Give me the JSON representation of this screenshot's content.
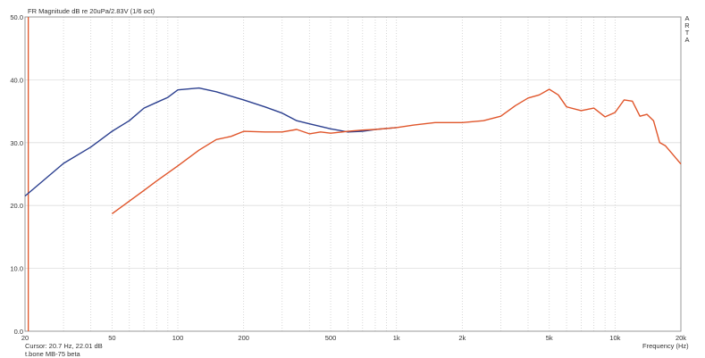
{
  "chart_data": {
    "type": "line",
    "title": "FR Magnitude dB re 20uPa/2.83V (1/6 oct)",
    "xlabel": "Frequency (Hz)",
    "ylabel": "",
    "xscale": "log",
    "xlim": [
      20,
      20000
    ],
    "ylim": [
      0,
      50
    ],
    "grid": true,
    "yticks": [
      "50.0",
      "40.0",
      "30.0",
      "20.0",
      "10.0",
      "0.0"
    ],
    "ytick_values": [
      50,
      40,
      30,
      20,
      10,
      0
    ],
    "xticks": [
      {
        "v": 20,
        "label": "20"
      },
      {
        "v": 50,
        "label": "50"
      },
      {
        "v": 100,
        "label": "100"
      },
      {
        "v": 200,
        "label": "200"
      },
      {
        "v": 500,
        "label": "500"
      },
      {
        "v": 1000,
        "label": "1k"
      },
      {
        "v": 2000,
        "label": "2k"
      },
      {
        "v": 5000,
        "label": "5k"
      },
      {
        "v": 10000,
        "label": "10k"
      },
      {
        "v": 20000,
        "label": "20k"
      }
    ],
    "cursor": {
      "freq": 20.7,
      "text": "Cursor: 20.7 Hz, 22.01 dB"
    },
    "caption": "t.bone MB-75 beta",
    "watermark": "ARTA",
    "series": [
      {
        "name": "blue",
        "color": "#2b3f8f",
        "x": [
          20,
          30,
          40,
          50,
          60,
          70,
          80,
          90,
          100,
          125,
          150,
          200,
          250,
          300,
          350,
          400,
          500,
          600,
          700,
          800,
          1000
        ],
        "y": [
          21.5,
          26.7,
          29.3,
          31.8,
          33.5,
          35.5,
          36.4,
          37.2,
          38.4,
          38.7,
          38.1,
          36.8,
          35.7,
          34.7,
          33.5,
          33.0,
          32.2,
          31.7,
          31.8,
          32.1,
          32.4
        ]
      },
      {
        "name": "red",
        "color": "#e0552a",
        "x": [
          50,
          60,
          70,
          80,
          100,
          125,
          150,
          175,
          200,
          250,
          300,
          350,
          400,
          450,
          500,
          600,
          700,
          800,
          1000,
          1200,
          1500,
          2000,
          2500,
          3000,
          3500,
          4000,
          4500,
          5000,
          5500,
          6000,
          7000,
          8000,
          9000,
          10000,
          11000,
          12000,
          13000,
          14000,
          15000,
          16000,
          17000,
          18000,
          20000
        ],
        "y": [
          18.7,
          20.7,
          22.4,
          23.9,
          26.3,
          28.8,
          30.5,
          31.0,
          31.8,
          31.7,
          31.7,
          32.1,
          31.4,
          31.7,
          31.5,
          31.8,
          32.0,
          32.1,
          32.4,
          32.8,
          33.2,
          33.2,
          33.5,
          34.2,
          35.9,
          37.1,
          37.6,
          38.5,
          37.6,
          35.7,
          35.1,
          35.5,
          34.1,
          34.8,
          36.8,
          36.6,
          34.2,
          34.5,
          33.5,
          30.0,
          29.5,
          28.5,
          26.6
        ]
      }
    ]
  }
}
